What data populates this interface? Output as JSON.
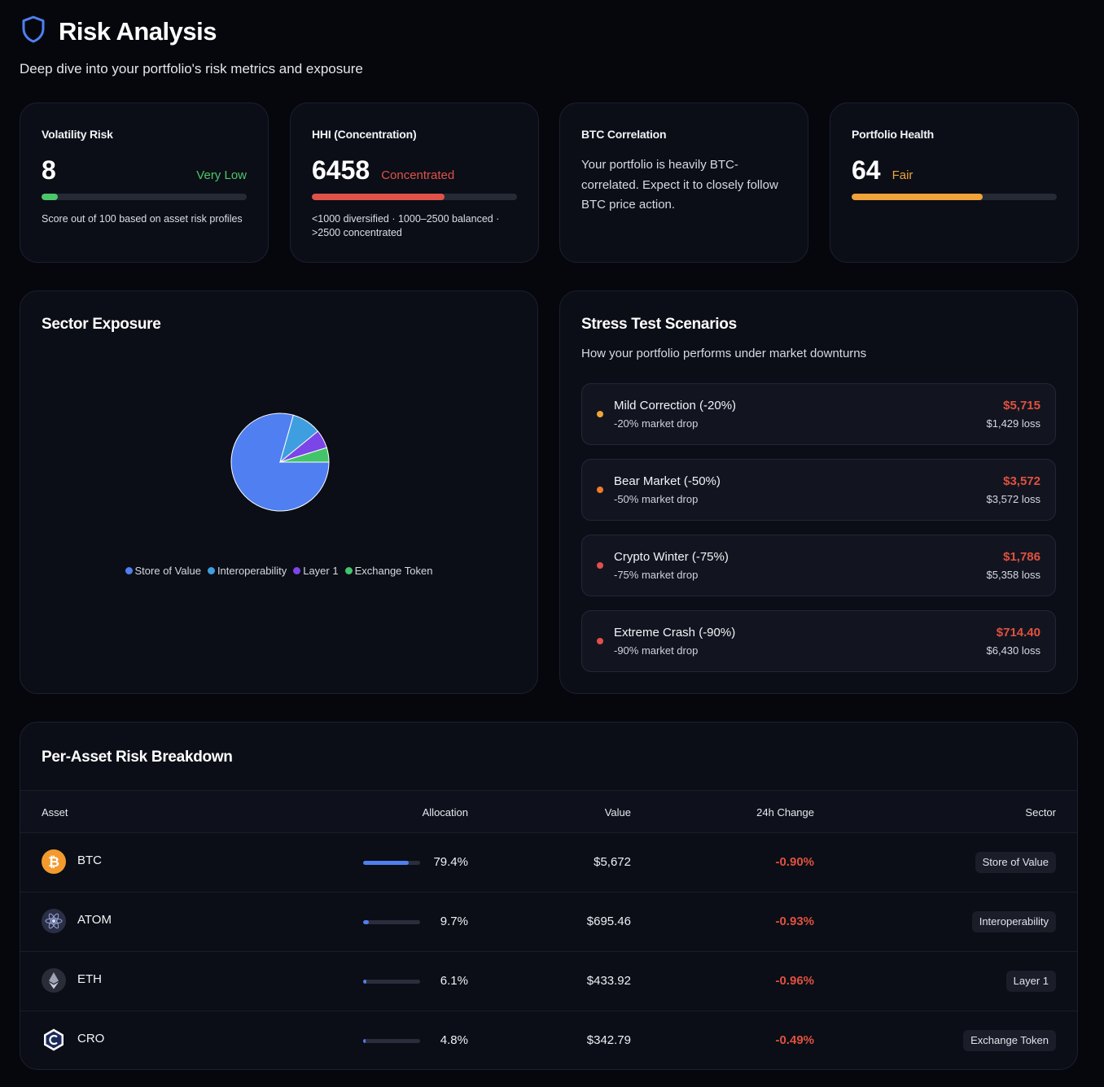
{
  "header": {
    "title": "Risk Analysis",
    "subtitle": "Deep dive into your portfolio's risk metrics and exposure",
    "icon": "shield-icon"
  },
  "metrics": {
    "volatility": {
      "label": "Volatility Risk",
      "value": "8",
      "status": "Very Low",
      "score": 8,
      "note": "Score out of 100 based on asset risk profiles",
      "color": "#4cc66a"
    },
    "hhi": {
      "label": "HHI (Concentration)",
      "value": "6458",
      "status": "Concentrated",
      "level_pct": 64.58,
      "note": "<1000 diversified · 1000–2500 balanced · >2500 concentrated",
      "color": "#e0514a"
    },
    "btc": {
      "label": "BTC Correlation",
      "text": "Your portfolio is heavily BTC-correlated. Expect it to closely follow BTC price action."
    },
    "health": {
      "label": "Portfolio Health",
      "value": "64",
      "status": "Fair",
      "score": 64,
      "color": "#f0a33a"
    }
  },
  "sector_exposure": {
    "title": "Sector Exposure",
    "legend": [
      {
        "label": "Store of Value",
        "color": "#4f7ff0"
      },
      {
        "label": "Interoperability",
        "color": "#3f9ee0"
      },
      {
        "label": "Layer 1",
        "color": "#7b45e8"
      },
      {
        "label": "Exchange Token",
        "color": "#43c46a"
      }
    ]
  },
  "chart_data": {
    "type": "pie",
    "categories": [
      "Store of Value",
      "Interoperability",
      "Layer 1",
      "Exchange Token"
    ],
    "values": [
      79.4,
      9.7,
      6.1,
      4.8
    ],
    "colors": [
      "#4f7ff0",
      "#3f9ee0",
      "#7b45e8",
      "#43c46a"
    ],
    "legend": "bottom"
  },
  "stress": {
    "title": "Stress Test Scenarios",
    "subtitle": "How your portfolio performs under market downturns",
    "scenarios": [
      {
        "name": "Mild Correction (-20%)",
        "drop": "-20% market drop",
        "value": "$5,715",
        "loss": "$1,429 loss",
        "color": "#f0a33a"
      },
      {
        "name": "Bear Market (-50%)",
        "drop": "-50% market drop",
        "value": "$3,572",
        "loss": "$3,572 loss",
        "color": "#f07a2a"
      },
      {
        "name": "Crypto Winter (-75%)",
        "drop": "-75% market drop",
        "value": "$1,786",
        "loss": "$5,358 loss",
        "color": "#e0514a"
      },
      {
        "name": "Extreme Crash (-90%)",
        "drop": "-90% market drop",
        "value": "$714.40",
        "loss": "$6,430 loss",
        "color": "#e0514a"
      }
    ]
  },
  "breakdown": {
    "title": "Per-Asset Risk Breakdown",
    "columns": [
      "Asset",
      "Allocation",
      "Value",
      "24h Change",
      "Sector"
    ],
    "rows": [
      {
        "asset": "BTC",
        "icon": "bitcoin-icon",
        "allocation": "79.4%",
        "alloc_pct": 79.4,
        "value": "$5,672",
        "change": "-0.90%",
        "sector": "Store of Value"
      },
      {
        "asset": "ATOM",
        "icon": "cosmos-icon",
        "allocation": "9.7%",
        "alloc_pct": 9.7,
        "value": "$695.46",
        "change": "-0.93%",
        "sector": "Interoperability"
      },
      {
        "asset": "ETH",
        "icon": "ethereum-icon",
        "allocation": "6.1%",
        "alloc_pct": 6.1,
        "value": "$433.92",
        "change": "-0.96%",
        "sector": "Layer 1"
      },
      {
        "asset": "CRO",
        "icon": "cronos-icon",
        "allocation": "4.8%",
        "alloc_pct": 4.8,
        "value": "$342.79",
        "change": "-0.49%",
        "sector": "Exchange Token"
      }
    ]
  }
}
